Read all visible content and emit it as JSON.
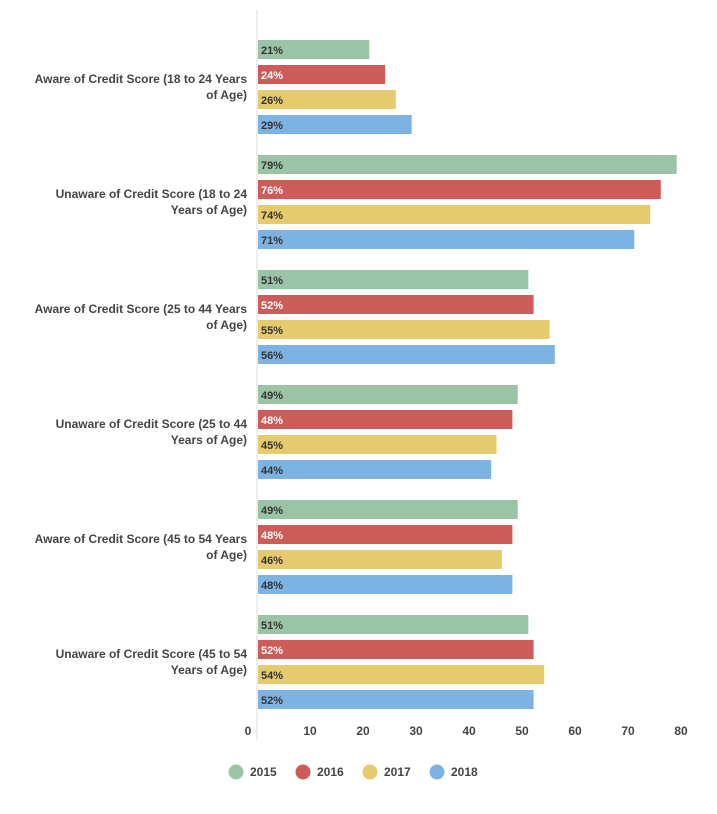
{
  "chart_data": {
    "type": "bar",
    "orientation": "horizontal",
    "categories": [
      [
        "Aware of Credit Score (18 to 24 Years",
        "of Age)"
      ],
      [
        "Unaware of Credit Score (18 to 24",
        "Years of Age)"
      ],
      [
        "Aware of Credit Score (25 to 44 Years",
        "of Age)"
      ],
      [
        "Unaware of Credit Score (25 to 44",
        "Years of Age)"
      ],
      [
        "Aware of Credit Score (45 to 54 Years",
        "of Age)"
      ],
      [
        "Unaware of Credit Score (45 to 54",
        "Years of Age)"
      ]
    ],
    "series": [
      {
        "name": "2015",
        "color": "#9bc4a6",
        "label_color": "#333333",
        "values": [
          21,
          79,
          51,
          49,
          49,
          51
        ]
      },
      {
        "name": "2016",
        "color": "#cd5c59",
        "label_color": "#ffffff",
        "values": [
          24,
          76,
          52,
          48,
          48,
          52
        ]
      },
      {
        "name": "2017",
        "color": "#e5ca6e",
        "label_color": "#333333",
        "values": [
          26,
          74,
          55,
          45,
          46,
          54
        ]
      },
      {
        "name": "2018",
        "color": "#7db3e2",
        "label_color": "#333333",
        "values": [
          29,
          71,
          56,
          44,
          48,
          52
        ]
      }
    ],
    "value_suffix": "%",
    "xlim": [
      0,
      80
    ],
    "xticks": [
      0,
      10,
      20,
      30,
      40,
      50,
      60,
      70,
      80
    ],
    "grid": false,
    "legend": "bottom-center"
  }
}
